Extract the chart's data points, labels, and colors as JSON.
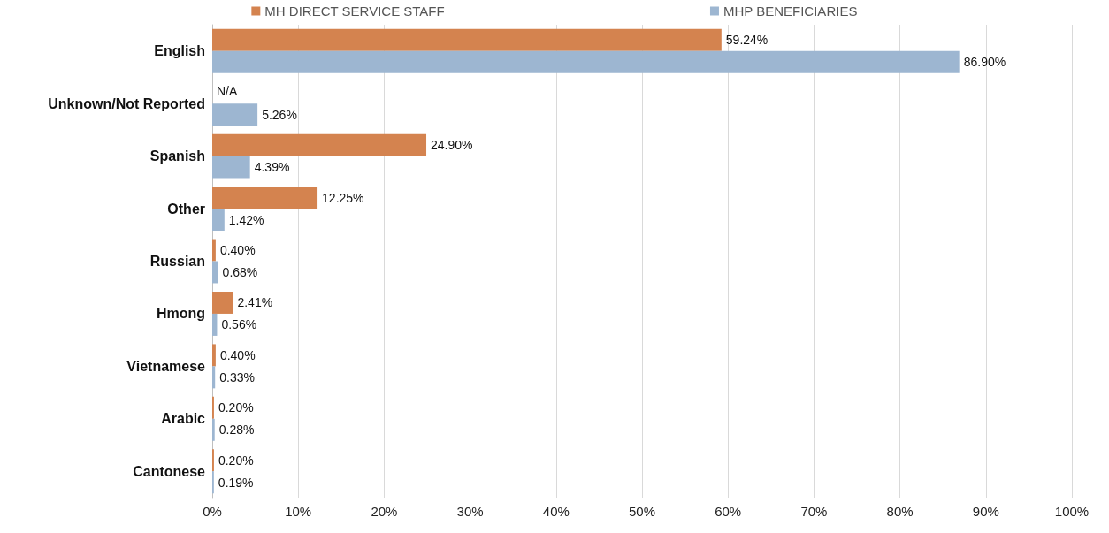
{
  "chart_data": {
    "type": "bar",
    "orientation": "horizontal",
    "categories": [
      "English",
      "Unknown/Not Reported",
      "Spanish",
      "Other",
      "Russian",
      "Hmong",
      "Vietnamese",
      "Arabic",
      "Cantonese"
    ],
    "series": [
      {
        "name": "MH DIRECT SERVICE STAFF",
        "color": "#d4834f",
        "values": [
          59.24,
          null,
          24.9,
          12.25,
          0.4,
          2.41,
          0.4,
          0.2,
          0.2
        ],
        "value_labels": [
          "59.24%",
          "N/A",
          "24.90%",
          "12.25%",
          "0.40%",
          "2.41%",
          "0.40%",
          "0.20%",
          "0.20%"
        ]
      },
      {
        "name": "MHP BENEFICIARIES",
        "color": "#9db6d1",
        "values": [
          86.9,
          5.26,
          4.39,
          1.42,
          0.68,
          0.56,
          0.33,
          0.28,
          0.19
        ],
        "value_labels": [
          "86.90%",
          "5.26%",
          "4.39%",
          "1.42%",
          "0.68%",
          "0.56%",
          "0.33%",
          "0.28%",
          "0.19%"
        ]
      }
    ],
    "xlim": [
      0,
      100
    ],
    "xticks": [
      {
        "value": 0,
        "label": "0%"
      },
      {
        "value": 10,
        "label": "10%"
      },
      {
        "value": 20,
        "label": "20%"
      },
      {
        "value": 30,
        "label": "30%"
      },
      {
        "value": 40,
        "label": "40%"
      },
      {
        "value": 50,
        "label": "50%"
      },
      {
        "value": 60,
        "label": "60%"
      },
      {
        "value": 70,
        "label": "70%"
      },
      {
        "value": 80,
        "label": "80%"
      },
      {
        "value": 90,
        "label": "90%"
      },
      {
        "value": 100,
        "label": "100%"
      }
    ],
    "grid": "x",
    "legend": "top"
  }
}
